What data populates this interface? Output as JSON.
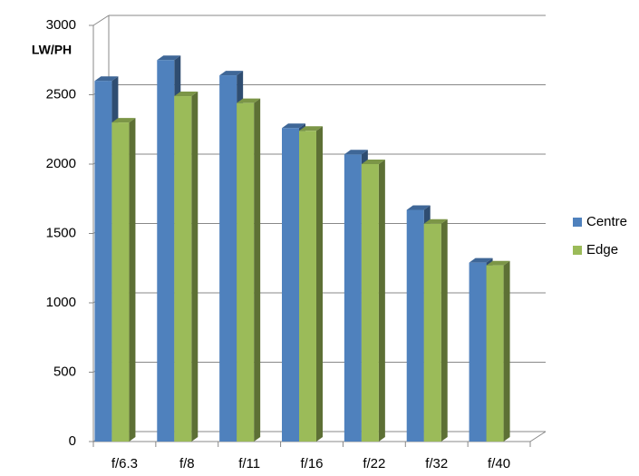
{
  "chart_data": {
    "type": "bar3d",
    "y_axis_label": "LW/PH",
    "categories": [
      "f/6.3",
      "f/8",
      "f/11",
      "f/16",
      "f/22",
      "f/32",
      "f/40"
    ],
    "series": [
      {
        "name": "Centre",
        "color": "#4f81bd",
        "values": [
          2600,
          2750,
          2640,
          2260,
          2070,
          1670,
          1290
        ]
      },
      {
        "name": "Edge",
        "color": "#9bbb59",
        "values": [
          2300,
          2490,
          2440,
          2240,
          2000,
          1570,
          1270
        ]
      }
    ],
    "ylim": [
      0,
      3000
    ],
    "yticks": [
      0,
      500,
      1000,
      1500,
      2000,
      2500,
      3000
    ],
    "grid": true,
    "legend": "right"
  }
}
